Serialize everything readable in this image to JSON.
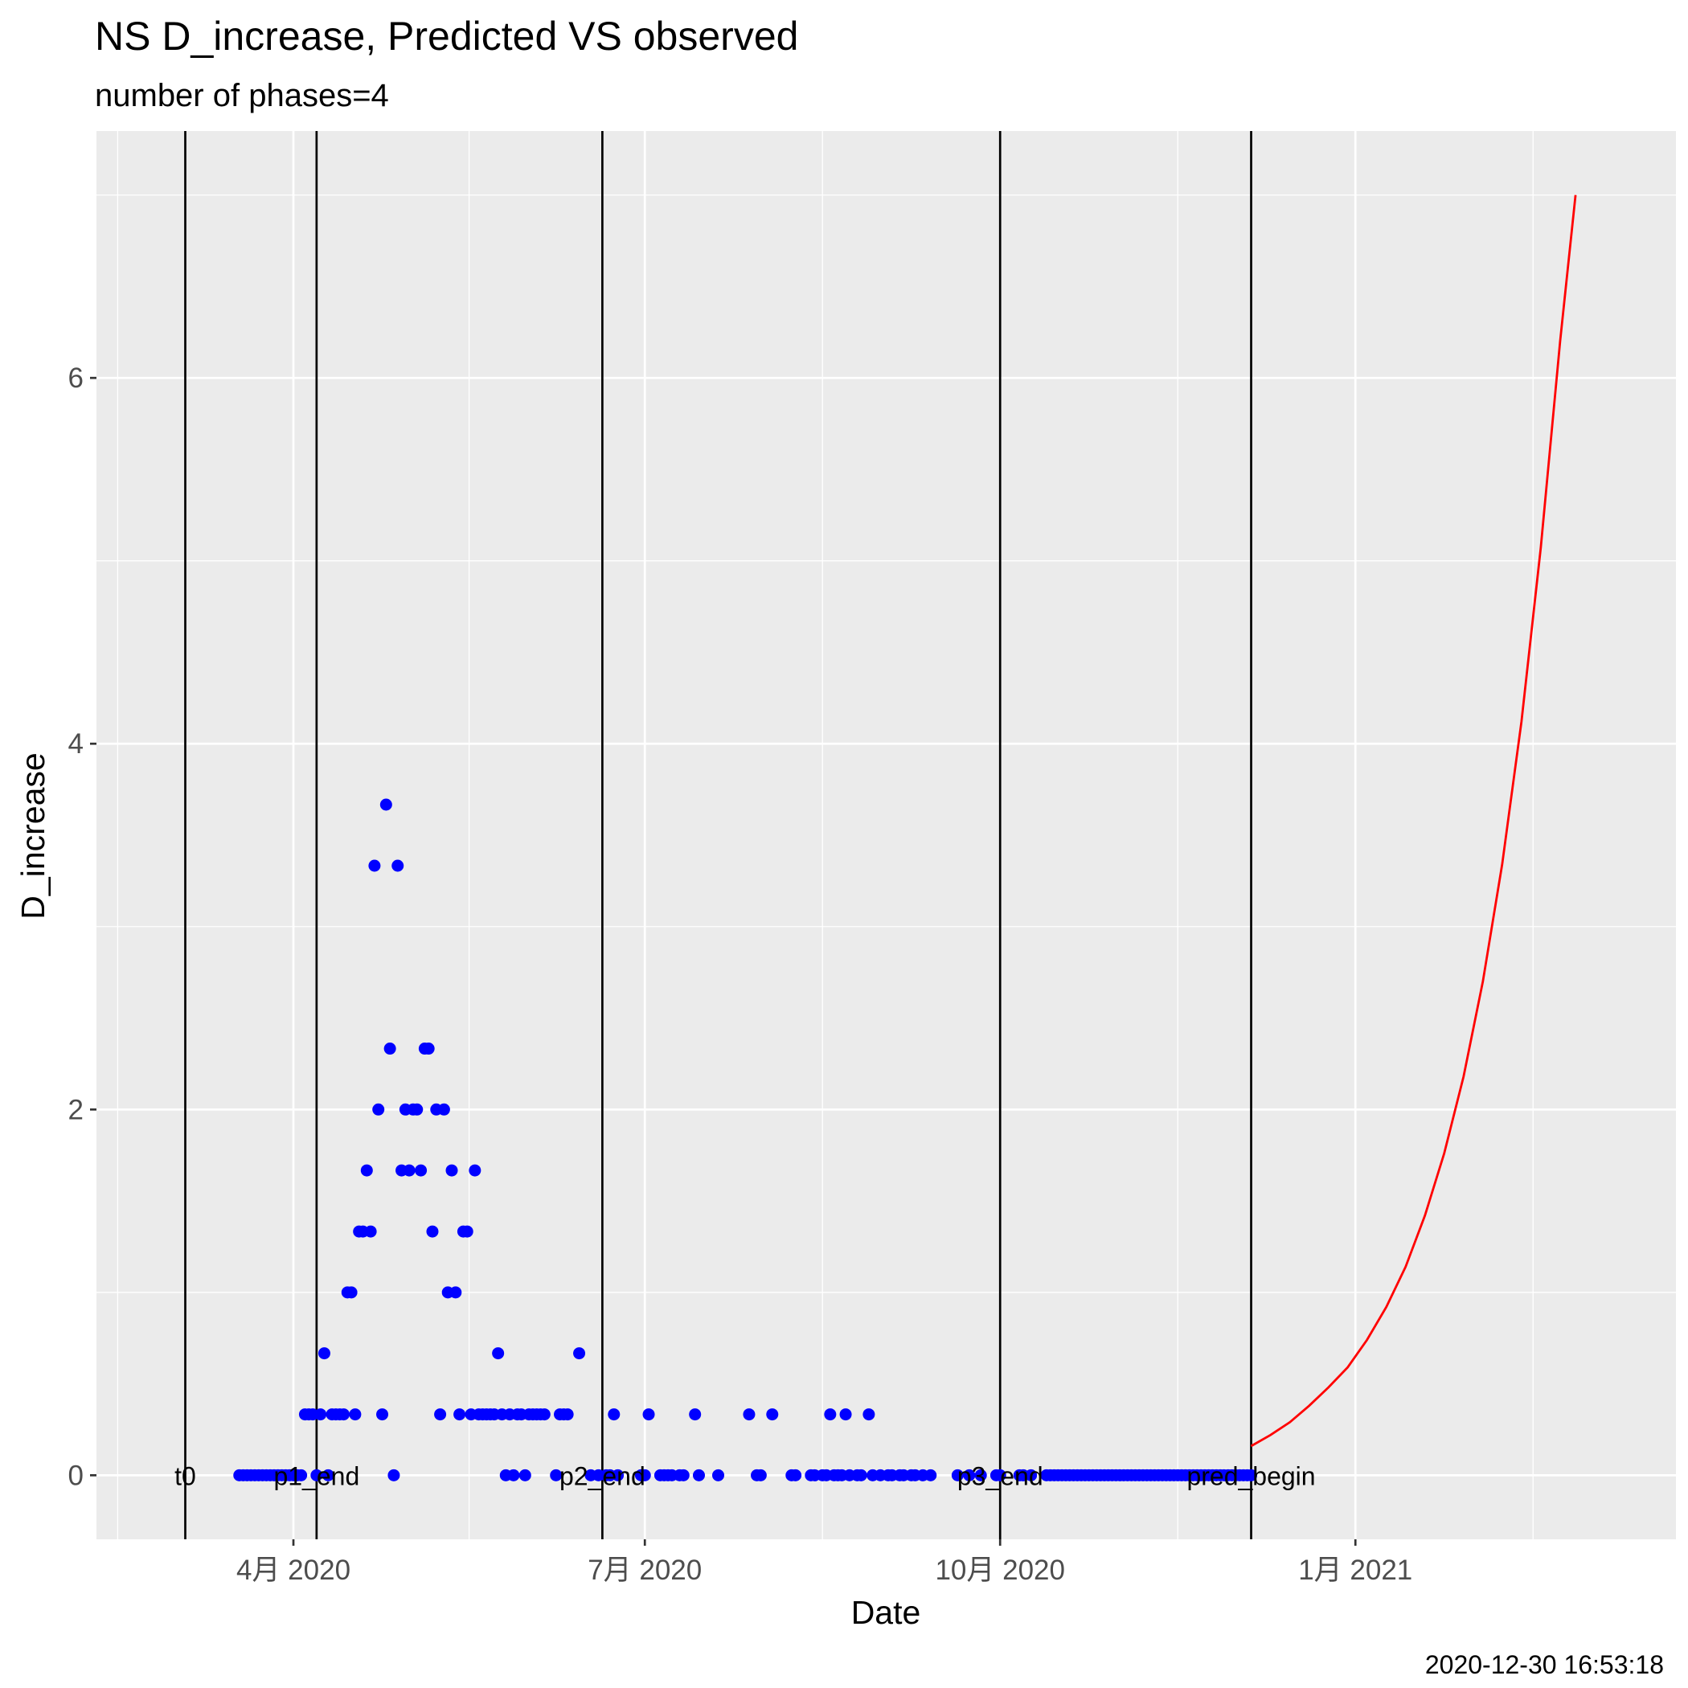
{
  "chart_data": {
    "type": "scatter",
    "title": "NS D_increase, Predicted VS observed",
    "subtitle": "number of phases=4",
    "xlabel": "Date",
    "ylabel": "D_increase",
    "caption": "2020-12-30 16:53:18",
    "xlim": [
      "2020-02-10",
      "2021-03-25"
    ],
    "ylim": [
      -0.35,
      7.35
    ],
    "x_ticks": [
      {
        "date": "2020-04-01",
        "label": "4月 2020"
      },
      {
        "date": "2020-07-01",
        "label": "7月 2020"
      },
      {
        "date": "2020-10-01",
        "label": "10月 2020"
      },
      {
        "date": "2021-01-01",
        "label": "1月 2021"
      }
    ],
    "y_ticks": [
      0,
      2,
      4,
      6
    ],
    "grid": true,
    "vlines": [
      {
        "date": "2020-03-04",
        "label": "t0"
      },
      {
        "date": "2020-04-07",
        "label": "p1_end"
      },
      {
        "date": "2020-06-20",
        "label": "p2_end"
      },
      {
        "date": "2020-10-01",
        "label": "p3_end"
      },
      {
        "date": "2020-12-05",
        "label": "pred_begin"
      }
    ],
    "series": [
      {
        "kind": "points",
        "color": "#0000ff",
        "points": [
          [
            "2020-03-18",
            0
          ],
          [
            "2020-03-19",
            0
          ],
          [
            "2020-03-20",
            0
          ],
          [
            "2020-03-21",
            0
          ],
          [
            "2020-03-22",
            0
          ],
          [
            "2020-03-23",
            0
          ],
          [
            "2020-03-24",
            0
          ],
          [
            "2020-03-25",
            0
          ],
          [
            "2020-03-26",
            0
          ],
          [
            "2020-03-27",
            0
          ],
          [
            "2020-03-28",
            0
          ],
          [
            "2020-03-29",
            0
          ],
          [
            "2020-03-30",
            0
          ],
          [
            "2020-03-31",
            0
          ],
          [
            "2020-04-01",
            0
          ],
          [
            "2020-04-02",
            0
          ],
          [
            "2020-04-03",
            0
          ],
          [
            "2020-04-04",
            0.333
          ],
          [
            "2020-04-05",
            0.333
          ],
          [
            "2020-04-06",
            0.333
          ],
          [
            "2020-04-07",
            0
          ],
          [
            "2020-04-08",
            0.333
          ],
          [
            "2020-04-09",
            0.667
          ],
          [
            "2020-04-10",
            0
          ],
          [
            "2020-04-11",
            0.333
          ],
          [
            "2020-04-12",
            0.333
          ],
          [
            "2020-04-13",
            0.333
          ],
          [
            "2020-04-14",
            0.333
          ],
          [
            "2020-04-15",
            1
          ],
          [
            "2020-04-16",
            1
          ],
          [
            "2020-04-17",
            0.333
          ],
          [
            "2020-04-18",
            1.333
          ],
          [
            "2020-04-19",
            1.333
          ],
          [
            "2020-04-20",
            1.667
          ],
          [
            "2020-04-21",
            1.333
          ],
          [
            "2020-04-22",
            3.333
          ],
          [
            "2020-04-23",
            2
          ],
          [
            "2020-04-24",
            0.333
          ],
          [
            "2020-04-25",
            3.667
          ],
          [
            "2020-04-26",
            2.333
          ],
          [
            "2020-04-27",
            0
          ],
          [
            "2020-04-28",
            3.333
          ],
          [
            "2020-04-29",
            1.667
          ],
          [
            "2020-04-30",
            2
          ],
          [
            "2020-05-01",
            1.667
          ],
          [
            "2020-05-02",
            2
          ],
          [
            "2020-05-03",
            2
          ],
          [
            "2020-05-04",
            1.667
          ],
          [
            "2020-05-05",
            2.333
          ],
          [
            "2020-05-06",
            2.333
          ],
          [
            "2020-05-07",
            1.333
          ],
          [
            "2020-05-08",
            2
          ],
          [
            "2020-05-09",
            0.333
          ],
          [
            "2020-05-10",
            2
          ],
          [
            "2020-05-11",
            1
          ],
          [
            "2020-05-12",
            1.667
          ],
          [
            "2020-05-13",
            1
          ],
          [
            "2020-05-14",
            0.333
          ],
          [
            "2020-05-15",
            1.333
          ],
          [
            "2020-05-16",
            1.333
          ],
          [
            "2020-05-17",
            0.333
          ],
          [
            "2020-05-18",
            1.667
          ],
          [
            "2020-05-19",
            0.333
          ],
          [
            "2020-05-20",
            0.333
          ],
          [
            "2020-05-21",
            0.333
          ],
          [
            "2020-05-22",
            0.333
          ],
          [
            "2020-05-23",
            0.333
          ],
          [
            "2020-05-24",
            0.667
          ],
          [
            "2020-05-25",
            0.333
          ],
          [
            "2020-05-26",
            0
          ],
          [
            "2020-05-27",
            0.333
          ],
          [
            "2020-05-28",
            0
          ],
          [
            "2020-05-29",
            0.333
          ],
          [
            "2020-05-30",
            0.333
          ],
          [
            "2020-05-31",
            0
          ],
          [
            "2020-06-01",
            0.333
          ],
          [
            "2020-06-02",
            0.333
          ],
          [
            "2020-06-03",
            0.333
          ],
          [
            "2020-06-04",
            0.333
          ],
          [
            "2020-06-05",
            0.333
          ],
          [
            "2020-06-08",
            0
          ],
          [
            "2020-06-09",
            0.333
          ],
          [
            "2020-06-10",
            0.333
          ],
          [
            "2020-06-11",
            0.333
          ],
          [
            "2020-06-14",
            0.667
          ],
          [
            "2020-06-17",
            0
          ],
          [
            "2020-06-19",
            0
          ],
          [
            "2020-06-21",
            0
          ],
          [
            "2020-06-22",
            0
          ],
          [
            "2020-06-23",
            0.333
          ],
          [
            "2020-06-24",
            0
          ],
          [
            "2020-06-30",
            0
          ],
          [
            "2020-07-01",
            0
          ],
          [
            "2020-07-02",
            0.333
          ],
          [
            "2020-07-05",
            0
          ],
          [
            "2020-07-06",
            0
          ],
          [
            "2020-07-07",
            0
          ],
          [
            "2020-07-08",
            0
          ],
          [
            "2020-07-10",
            0
          ],
          [
            "2020-07-11",
            0
          ],
          [
            "2020-07-14",
            0.333
          ],
          [
            "2020-07-15",
            0
          ],
          [
            "2020-07-20",
            0
          ],
          [
            "2020-07-28",
            0.333
          ],
          [
            "2020-07-30",
            0
          ],
          [
            "2020-07-31",
            0
          ],
          [
            "2020-08-03",
            0.333
          ],
          [
            "2020-08-08",
            0
          ],
          [
            "2020-08-09",
            0
          ],
          [
            "2020-08-13",
            0
          ],
          [
            "2020-08-14",
            0
          ],
          [
            "2020-08-16",
            0
          ],
          [
            "2020-08-17",
            0
          ],
          [
            "2020-08-18",
            0.333
          ],
          [
            "2020-08-19",
            0
          ],
          [
            "2020-08-20",
            0
          ],
          [
            "2020-08-21",
            0
          ],
          [
            "2020-08-22",
            0.333
          ],
          [
            "2020-08-23",
            0
          ],
          [
            "2020-08-25",
            0
          ],
          [
            "2020-08-26",
            0
          ],
          [
            "2020-08-28",
            0.333
          ],
          [
            "2020-08-29",
            0
          ],
          [
            "2020-08-31",
            0
          ],
          [
            "2020-09-02",
            0
          ],
          [
            "2020-09-03",
            0
          ],
          [
            "2020-09-05",
            0
          ],
          [
            "2020-09-06",
            0
          ],
          [
            "2020-09-08",
            0
          ],
          [
            "2020-09-09",
            0
          ],
          [
            "2020-09-11",
            0
          ],
          [
            "2020-09-13",
            0
          ],
          [
            "2020-09-20",
            0
          ],
          [
            "2020-09-23",
            0
          ],
          [
            "2020-09-26",
            0
          ],
          [
            "2020-09-30",
            0
          ],
          [
            "2020-10-01",
            0
          ],
          [
            "2020-10-06",
            0
          ],
          [
            "2020-10-07",
            0
          ],
          [
            "2020-10-09",
            0
          ],
          [
            "2020-10-13",
            0
          ],
          [
            "2020-10-14",
            0
          ],
          [
            "2020-10-15",
            0
          ],
          [
            "2020-10-16",
            0
          ],
          [
            "2020-10-17",
            0
          ],
          [
            "2020-10-18",
            0
          ],
          [
            "2020-10-19",
            0
          ],
          [
            "2020-10-20",
            0
          ],
          [
            "2020-10-21",
            0
          ],
          [
            "2020-10-22",
            0
          ],
          [
            "2020-10-23",
            0
          ],
          [
            "2020-10-24",
            0
          ],
          [
            "2020-10-25",
            0
          ],
          [
            "2020-10-26",
            0
          ],
          [
            "2020-10-27",
            0
          ],
          [
            "2020-10-28",
            0
          ],
          [
            "2020-10-29",
            0
          ],
          [
            "2020-10-30",
            0
          ],
          [
            "2020-10-31",
            0
          ],
          [
            "2020-11-01",
            0
          ],
          [
            "2020-11-02",
            0
          ],
          [
            "2020-11-03",
            0
          ],
          [
            "2020-11-04",
            0
          ],
          [
            "2020-11-05",
            0
          ],
          [
            "2020-11-06",
            0
          ],
          [
            "2020-11-07",
            0
          ],
          [
            "2020-11-08",
            0
          ],
          [
            "2020-11-09",
            0
          ],
          [
            "2020-11-10",
            0
          ],
          [
            "2020-11-11",
            0
          ],
          [
            "2020-11-12",
            0
          ],
          [
            "2020-11-13",
            0
          ],
          [
            "2020-11-14",
            0
          ],
          [
            "2020-11-15",
            0
          ],
          [
            "2020-11-16",
            0
          ],
          [
            "2020-11-17",
            0
          ],
          [
            "2020-11-18",
            0
          ],
          [
            "2020-11-19",
            0
          ],
          [
            "2020-11-20",
            0
          ],
          [
            "2020-11-21",
            0
          ],
          [
            "2020-11-22",
            0
          ],
          [
            "2020-11-23",
            0
          ],
          [
            "2020-11-24",
            0
          ],
          [
            "2020-11-25",
            0
          ],
          [
            "2020-11-26",
            0
          ],
          [
            "2020-11-27",
            0
          ],
          [
            "2020-11-28",
            0
          ],
          [
            "2020-11-29",
            0
          ],
          [
            "2020-11-30",
            0
          ],
          [
            "2020-12-01",
            0
          ],
          [
            "2020-12-02",
            0
          ],
          [
            "2020-12-03",
            0
          ],
          [
            "2020-12-04",
            0
          ],
          [
            "2020-12-05",
            0
          ]
        ]
      },
      {
        "kind": "line",
        "color": "#ff0000",
        "points": [
          [
            "2020-12-05",
            0.16
          ],
          [
            "2020-12-10",
            0.22
          ],
          [
            "2020-12-15",
            0.29
          ],
          [
            "2020-12-20",
            0.38
          ],
          [
            "2020-12-25",
            0.48
          ],
          [
            "2020-12-30",
            0.59
          ],
          [
            "2021-01-04",
            0.74
          ],
          [
            "2021-01-09",
            0.92
          ],
          [
            "2021-01-14",
            1.14
          ],
          [
            "2021-01-19",
            1.42
          ],
          [
            "2021-01-24",
            1.76
          ],
          [
            "2021-01-29",
            2.18
          ],
          [
            "2021-02-03",
            2.7
          ],
          [
            "2021-02-08",
            3.34
          ],
          [
            "2021-02-13",
            4.12
          ],
          [
            "2021-02-18",
            5.07
          ],
          [
            "2021-02-23",
            6.2
          ],
          [
            "2021-02-27",
            7.0
          ]
        ]
      }
    ]
  }
}
